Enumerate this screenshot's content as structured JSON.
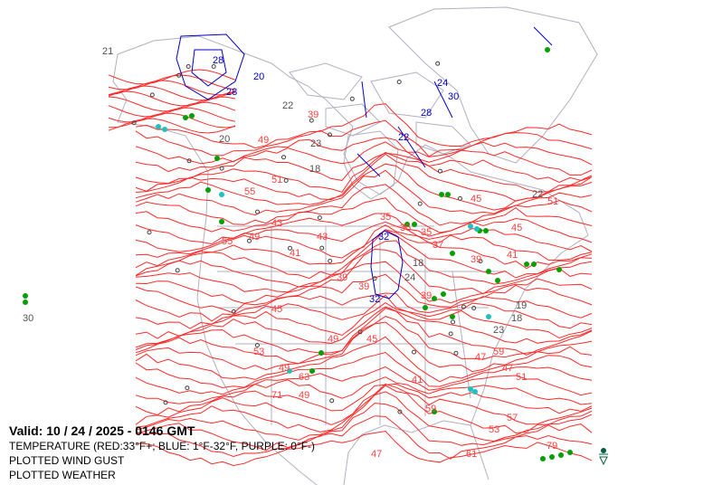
{
  "legend": {
    "valid": "Valid: 10 / 24 / 2025  -  0146 GMT",
    "temperature": "TEMPERATURE (RED:33°F+; BLUE: 1°F-32°F, PURPLE: 0°F-)",
    "wind_gust": "PLOTTED WIND GUST",
    "weather": "PLOTTED WEATHER"
  },
  "colors": {
    "warm_contour": "#ff2a2a",
    "cold_contour": "#0000c0",
    "boundary": "#b0b0c0",
    "station_text": "#505050",
    "rain": "#00a000",
    "drizzle_mist": "#20c0c0",
    "haze": "#a0a000",
    "thunder_symbol": "#006040"
  },
  "red_labels": [
    "39",
    "39",
    "49",
    "43",
    "35",
    "35",
    "45",
    "45",
    "51",
    "41",
    "43",
    "49",
    "51",
    "55",
    "45",
    "47",
    "35",
    "39",
    "39",
    "49",
    "53",
    "49",
    "45",
    "47",
    "51",
    "53",
    "41",
    "39",
    "59",
    "57",
    "59",
    "79",
    "47",
    "37",
    "41",
    "49",
    "55",
    "61",
    "63",
    "71"
  ],
  "blue_labels": [
    "32",
    "32",
    "28",
    "28",
    "24",
    "20",
    "28",
    "22",
    "30"
  ],
  "station_values": [
    "21",
    "22",
    "23",
    "18",
    "24",
    "18",
    "18",
    "23",
    "19",
    "30",
    "22",
    "20"
  ]
}
